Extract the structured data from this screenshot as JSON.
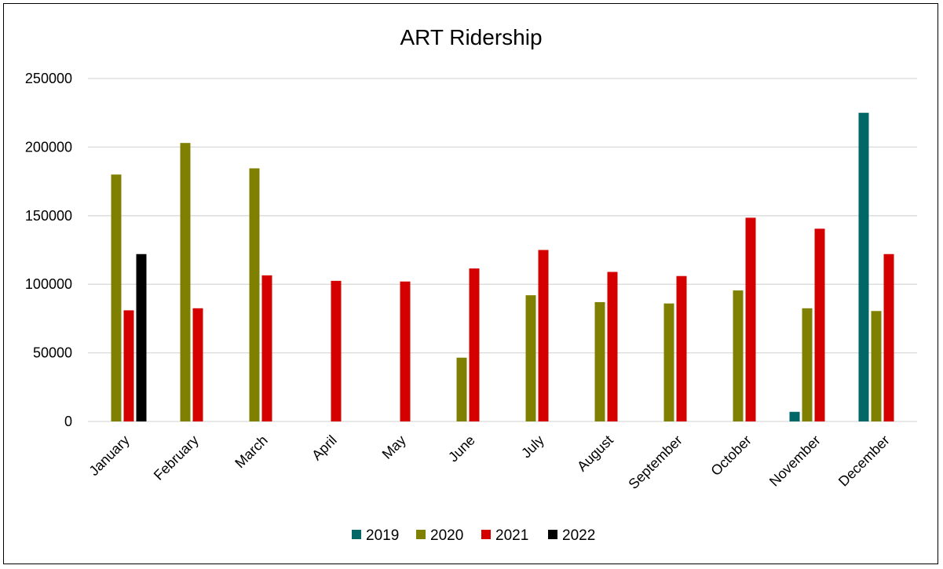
{
  "chart_data": {
    "type": "bar",
    "title": "ART Ridership",
    "xlabel": "",
    "ylabel": "",
    "ylim": [
      0,
      250000
    ],
    "yticks": [
      0,
      50000,
      100000,
      150000,
      200000,
      250000
    ],
    "grid": true,
    "legend_position": "bottom",
    "categories": [
      "January",
      "February",
      "March",
      "April",
      "May",
      "June",
      "July",
      "August",
      "September",
      "October",
      "November",
      "December"
    ],
    "series": [
      {
        "name": "2019",
        "color": "#006666",
        "values": [
          null,
          null,
          null,
          null,
          null,
          null,
          null,
          null,
          null,
          null,
          7000,
          225000
        ]
      },
      {
        "name": "2020",
        "color": "#808000",
        "values": [
          180000,
          203000,
          184500,
          null,
          null,
          46500,
          92000,
          87000,
          86000,
          95500,
          82500,
          80500
        ]
      },
      {
        "name": "2021",
        "color": "#d40000",
        "values": [
          81000,
          82500,
          106500,
          102500,
          102000,
          111500,
          125000,
          109000,
          106000,
          148500,
          140500,
          122000
        ]
      },
      {
        "name": "2022",
        "color": "#000000",
        "values": [
          122000,
          null,
          null,
          null,
          null,
          null,
          null,
          null,
          null,
          null,
          null,
          null
        ]
      }
    ]
  }
}
